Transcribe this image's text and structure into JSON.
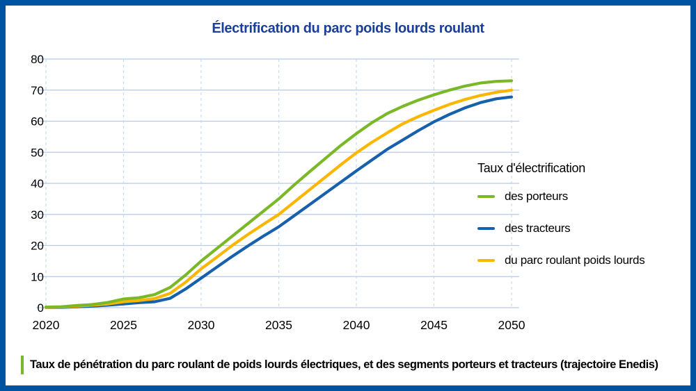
{
  "page": {
    "title": "Électrification du parc poids lourds roulant",
    "caption": "Taux de pénétration du parc roulant de poids lourds électriques, et des segments porteurs et tracteurs (trajectoire Enedis)"
  },
  "legend": {
    "title": "Taux d'électrification",
    "items": [
      {
        "label": "des porteurs",
        "color": "#7AB828"
      },
      {
        "label": "des tracteurs",
        "color": "#1761AC"
      },
      {
        "label": "du parc roulant poids lourds",
        "color": "#FBB600"
      }
    ]
  },
  "colors": {
    "frame_border": "#0053A1",
    "title_text": "#1A3E99",
    "gridline": "#B8C9E6",
    "gridline_dashed": "#C3DAF0",
    "caption_bar": "#76B82B",
    "tick_text": "#000000"
  },
  "chart_data": {
    "type": "line",
    "title": "Électrification du parc poids lourds roulant",
    "xlabel": "",
    "ylabel": "",
    "xlim": [
      2020,
      2050
    ],
    "ylim": [
      0,
      80
    ],
    "xticks": [
      2020,
      2025,
      2030,
      2035,
      2040,
      2045,
      2050
    ],
    "yticks": [
      0,
      10,
      20,
      30,
      40,
      50,
      60,
      70,
      80
    ],
    "grid": true,
    "legend_title": "Taux d'électrification",
    "legend_position": "right",
    "x": [
      2020,
      2021,
      2022,
      2023,
      2024,
      2025,
      2026,
      2027,
      2028,
      2029,
      2030,
      2031,
      2032,
      2033,
      2034,
      2035,
      2036,
      2037,
      2038,
      2039,
      2040,
      2041,
      2042,
      2043,
      2044,
      2045,
      2046,
      2047,
      2048,
      2049,
      2050
    ],
    "series": [
      {
        "name": "des porteurs",
        "color": "#7AB828",
        "values": [
          0.2,
          0.3,
          0.7,
          1.0,
          1.7,
          2.8,
          3.2,
          4.2,
          6.5,
          10.5,
          15,
          19,
          23,
          27,
          31,
          35,
          39.5,
          43.8,
          48,
          52.2,
          56,
          59.5,
          62.5,
          64.8,
          66.8,
          68.5,
          70,
          71.3,
          72.3,
          72.8,
          73
        ]
      },
      {
        "name": "des tracteurs",
        "color": "#1761AC",
        "values": [
          0.05,
          0.1,
          0.3,
          0.5,
          0.8,
          1.2,
          1.6,
          1.9,
          3,
          6,
          9.5,
          13,
          16.5,
          19.8,
          23,
          26,
          29.6,
          33.2,
          36.8,
          40.4,
          44,
          47.5,
          51,
          54,
          57,
          59.8,
          62.2,
          64.3,
          66,
          67.2,
          67.8
        ]
      },
      {
        "name": "du parc roulant poids lourds",
        "color": "#FBB600",
        "values": [
          0.1,
          0.2,
          0.5,
          0.8,
          1.2,
          1.9,
          2.3,
          2.9,
          4.6,
          8.2,
          12.5,
          16.2,
          20,
          23.5,
          26.8,
          30,
          34,
          38,
          42,
          46,
          49.8,
          53.2,
          56.3,
          59.2,
          61.5,
          63.5,
          65.4,
          67,
          68.3,
          69.3,
          70
        ]
      }
    ]
  }
}
